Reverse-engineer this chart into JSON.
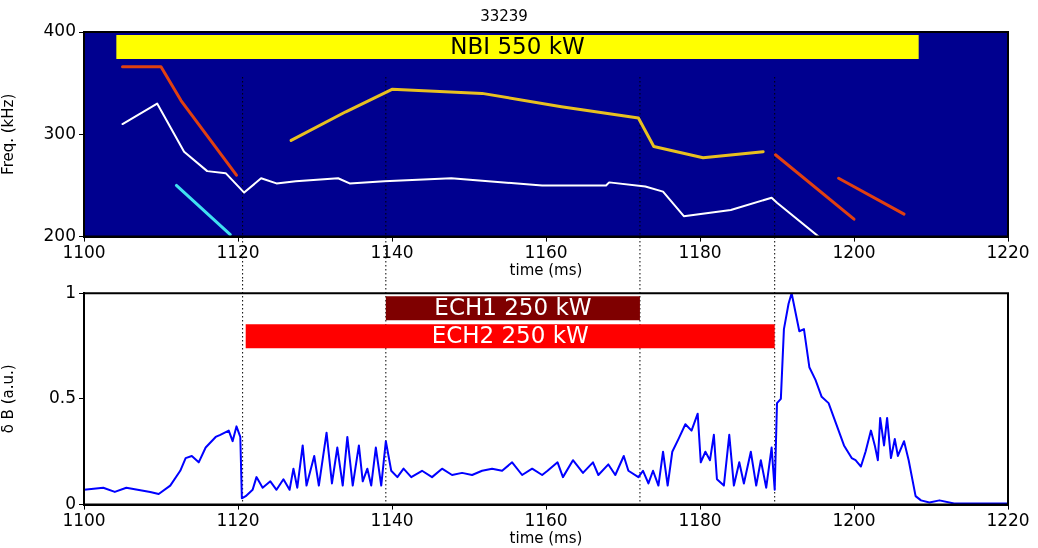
{
  "chart_data": [
    {
      "type": "line",
      "title": "33239",
      "xlabel": "time (ms)",
      "ylabel": "Freq. (kHz)",
      "xlim": [
        1100,
        1220
      ],
      "xticks": [
        1100,
        1120,
        1140,
        1160,
        1180,
        1200,
        1220
      ],
      "ylim": [
        200,
        400
      ],
      "yticks": [
        200,
        300,
        400
      ],
      "grid": false,
      "legend": false,
      "marker": "none",
      "line_style": "solid",
      "series": [
        {
          "color": "#ffffff",
          "x": [
            1105,
            1109.5,
            1113,
            1116,
            1118.4,
            1120.8,
            1123,
            1125,
            1127.5,
            1133,
            1134.5,
            1139,
            1147.7,
            1159.5,
            1167.8,
            1168.2,
            1172.9,
            1175.2,
            1177.9,
            1184,
            1189.3,
            1190,
            1195.4
          ],
          "values": [
            310,
            330,
            283,
            264,
            262,
            243,
            257,
            252,
            254,
            257,
            252,
            254,
            257,
            250,
            250,
            253,
            249,
            244,
            220,
            226,
            238,
            233,
            200
          ]
        },
        {
          "color": "#e04010",
          "x": [
            1105,
            1110,
            1112.6,
            1119.8
          ],
          "values": [
            366,
            366,
            333,
            260
          ]
        },
        {
          "color": "#e8c020",
          "x": [
            1126.9,
            1134,
            1140,
            1151.7,
            1162,
            1172,
            1174,
            1180.4,
            1188.2
          ],
          "values": [
            294,
            322,
            344,
            340,
            327,
            316,
            288,
            277,
            283
          ]
        },
        {
          "color": "#e04010",
          "x": [
            1189.8,
            1200
          ],
          "values": [
            280,
            217
          ]
        },
        {
          "color": "#e04010",
          "x": [
            1198,
            1206.5
          ],
          "values": [
            257,
            222
          ]
        },
        {
          "color": "#40e0f0",
          "x": [
            1112,
            1119
          ],
          "values": [
            250,
            202
          ]
        }
      ],
      "bands": [
        {
          "axis": "x",
          "from": 1104.2,
          "to": 1208.4,
          "label": "NBI 550 kW",
          "color": "#ffff00"
        }
      ],
      "ref_lines": [
        {
          "axis": "x",
          "value": 1120.6,
          "line_style": "dotted",
          "color": "#000000"
        },
        {
          "axis": "x",
          "value": 1139.2,
          "line_style": "dotted",
          "color": "#000000"
        },
        {
          "axis": "x",
          "value": 1172.2,
          "line_style": "dotted",
          "color": "#000000"
        },
        {
          "axis": "x",
          "value": 1189.7,
          "line_style": "dotted",
          "color": "#000000"
        }
      ]
    },
    {
      "type": "line",
      "xlabel": "time (ms)",
      "ylabel": "δ B (a.u.)",
      "xlim": [
        1100,
        1220
      ],
      "xticks": [
        1100,
        1120,
        1140,
        1160,
        1180,
        1200,
        1220
      ],
      "ylim": [
        0,
        1
      ],
      "yticks": [
        0,
        0.5,
        1
      ],
      "grid": false,
      "legend": false,
      "marker": "none",
      "line_style": "solid",
      "series": [
        {
          "color": "#0000ff",
          "x": [
            1100,
            1102.5,
            1104,
            1105.5,
            1108.6,
            1109.7,
            1111.2,
            1112.5,
            1113.2,
            1114,
            1114.9,
            1115.8,
            1117.1,
            1117.7,
            1118.8,
            1119.3,
            1119.8,
            1120.3,
            1120.5,
            1121,
            1121.9,
            1122.4,
            1123.2,
            1124.2,
            1125,
            1125.9,
            1126.7,
            1127.2,
            1127.7,
            1128.4,
            1128.9,
            1129.9,
            1130.5,
            1131.5,
            1132.2,
            1132.9,
            1133.6,
            1134.2,
            1134.9,
            1135.7,
            1136.2,
            1136.8,
            1137.3,
            1137.9,
            1138.6,
            1139.2,
            1139.9,
            1140.7,
            1141.5,
            1142.5,
            1143.9,
            1145.2,
            1146.5,
            1147.8,
            1149.1,
            1150.4,
            1151.7,
            1153,
            1154.3,
            1155.6,
            1156.9,
            1158.2,
            1159.5,
            1160.2,
            1161.5,
            1162.2,
            1163.5,
            1164.8,
            1166.1,
            1166.8,
            1168.1,
            1169,
            1170.1,
            1170.7,
            1172,
            1172.6,
            1173.3,
            1173.9,
            1174.6,
            1175.2,
            1175.8,
            1176.4,
            1177.2,
            1178.1,
            1178.9,
            1179.7,
            1180.1,
            1180.7,
            1181.3,
            1181.8,
            1182.2,
            1183.1,
            1183.8,
            1184.4,
            1185.1,
            1185.7,
            1186.6,
            1187.3,
            1187.9,
            1188.6,
            1189.3,
            1189.7,
            1190,
            1190.5,
            1190.9,
            1191.5,
            1191.9,
            1192.4,
            1192.9,
            1193.5,
            1194.2,
            1195,
            1195.8,
            1196.7,
            1197.6,
            1198.7,
            1199.7,
            1200.2,
            1200.9,
            1201.5,
            1202.2,
            1202.7,
            1203.1,
            1203.4,
            1203.9,
            1204.3,
            1204.8,
            1205.3,
            1205.7,
            1206.5,
            1207.1,
            1208,
            1208.7,
            1209.8,
            1211.1,
            1213,
            1220
          ],
          "values": [
            0.07,
            0.08,
            0.06,
            0.08,
            0.06,
            0.05,
            0.09,
            0.16,
            0.22,
            0.23,
            0.2,
            0.27,
            0.32,
            0.33,
            0.35,
            0.3,
            0.37,
            0.32,
            0.03,
            0.04,
            0.07,
            0.13,
            0.08,
            0.11,
            0.07,
            0.12,
            0.07,
            0.17,
            0.08,
            0.28,
            0.09,
            0.23,
            0.09,
            0.34,
            0.1,
            0.27,
            0.09,
            0.32,
            0.09,
            0.28,
            0.11,
            0.17,
            0.09,
            0.27,
            0.09,
            0.3,
            0.16,
            0.13,
            0.17,
            0.13,
            0.16,
            0.13,
            0.17,
            0.14,
            0.15,
            0.14,
            0.16,
            0.17,
            0.16,
            0.2,
            0.14,
            0.17,
            0.14,
            0.16,
            0.2,
            0.13,
            0.21,
            0.15,
            0.2,
            0.14,
            0.19,
            0.14,
            0.23,
            0.16,
            0.13,
            0.16,
            0.1,
            0.16,
            0.09,
            0.25,
            0.09,
            0.25,
            0.31,
            0.38,
            0.35,
            0.43,
            0.2,
            0.25,
            0.21,
            0.33,
            0.12,
            0.09,
            0.33,
            0.09,
            0.2,
            0.1,
            0.25,
            0.09,
            0.21,
            0.08,
            0.27,
            0.07,
            0.48,
            0.5,
            0.83,
            0.95,
            1,
            0.91,
            0.82,
            0.83,
            0.65,
            0.59,
            0.51,
            0.48,
            0.39,
            0.28,
            0.22,
            0.21,
            0.18,
            0.25,
            0.35,
            0.28,
            0.21,
            0.41,
            0.28,
            0.41,
            0.22,
            0.31,
            0.23,
            0.3,
            0.21,
            0.04,
            0.02,
            0.01,
            0.02,
            0.005,
            0.005
          ]
        }
      ],
      "bands": [
        {
          "axis": "x",
          "from": 1139.2,
          "to": 1172.2,
          "label": "ECH1 250 kW",
          "color": "#7f0000"
        },
        {
          "axis": "x",
          "from": 1121,
          "to": 1189.7,
          "label": "ECH2 250 kW",
          "color": "#ff0000"
        }
      ],
      "ref_lines": [
        {
          "axis": "x",
          "value": 1120.6,
          "line_style": "dotted",
          "color": "#000000"
        },
        {
          "axis": "x",
          "value": 1139.2,
          "line_style": "dotted",
          "color": "#000000"
        },
        {
          "axis": "x",
          "value": 1172.2,
          "line_style": "dotted",
          "color": "#000000"
        },
        {
          "axis": "x",
          "value": 1189.7,
          "line_style": "dotted",
          "color": "#000000"
        }
      ]
    }
  ]
}
